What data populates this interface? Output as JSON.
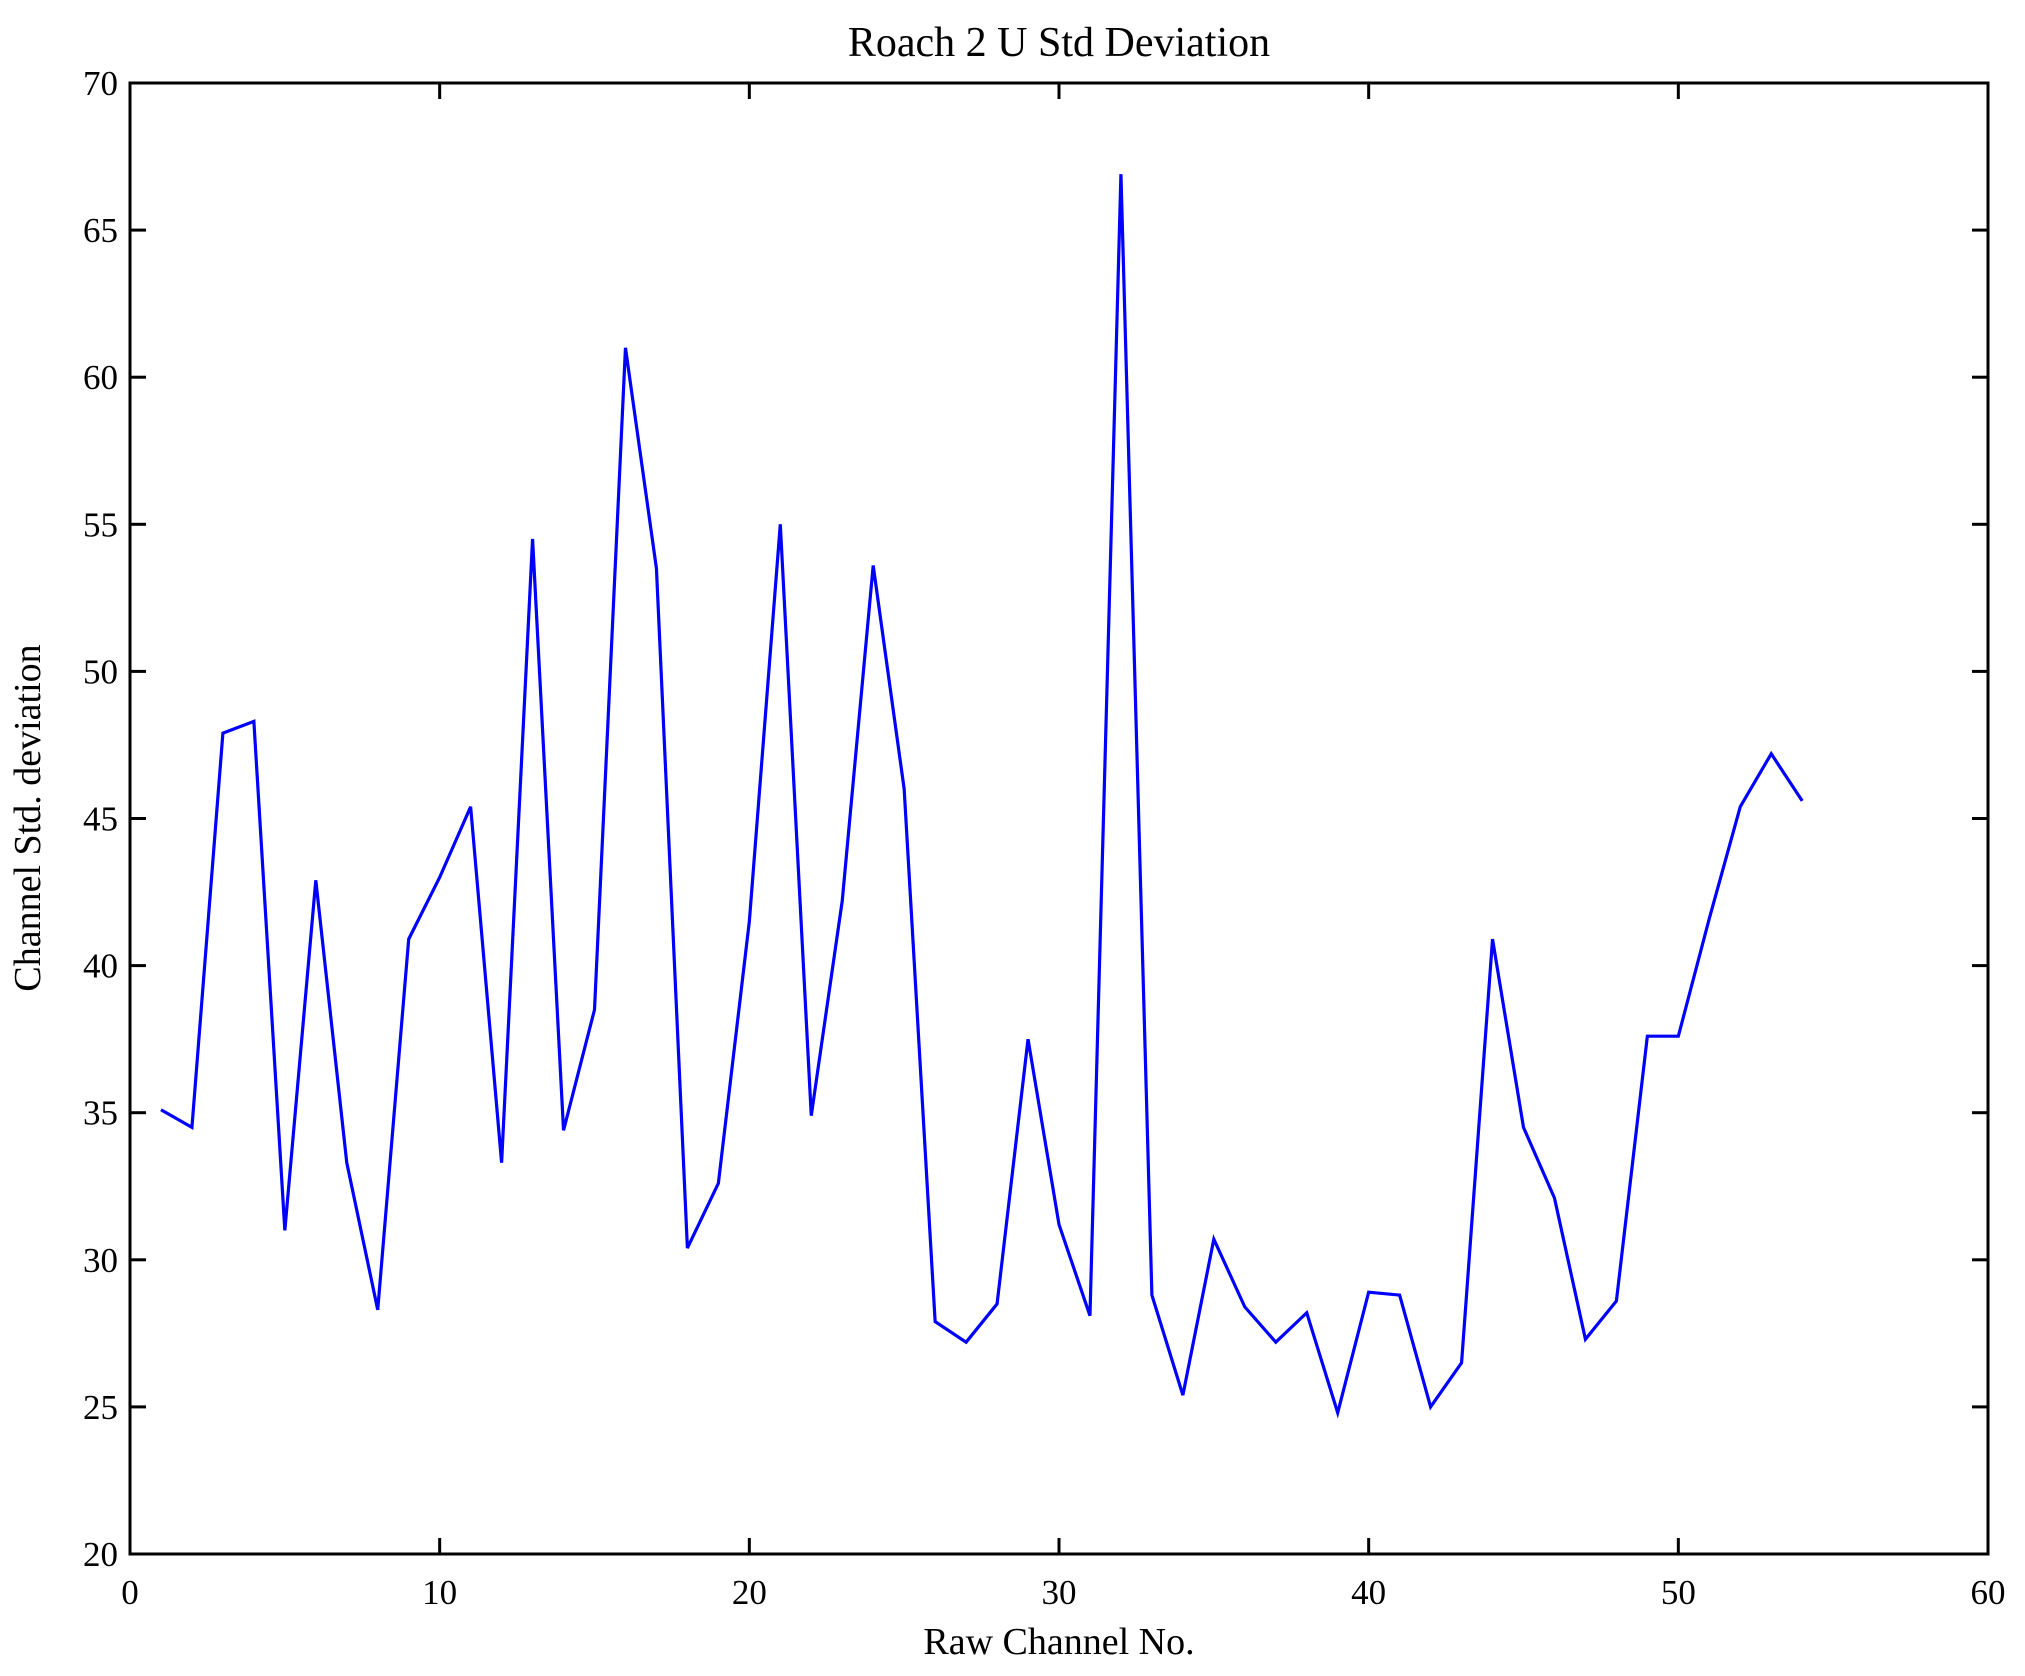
{
  "figure": {
    "background": "#ffffff",
    "axis_color": "#000000"
  },
  "chart_data": {
    "type": "line",
    "title": "Roach 2 U Std Deviation",
    "xlabel": "Raw Channel No.",
    "ylabel": "Channel Std. deviation",
    "xlim": [
      0,
      60
    ],
    "ylim": [
      20,
      70
    ],
    "xticks": [
      0,
      10,
      20,
      30,
      40,
      50,
      60
    ],
    "yticks": [
      20,
      25,
      30,
      35,
      40,
      45,
      50,
      55,
      60,
      65,
      70
    ],
    "grid": false,
    "legend": null,
    "line_color": "#0000FF",
    "x": [
      1,
      2,
      3,
      4,
      5,
      6,
      7,
      8,
      9,
      10,
      11,
      12,
      13,
      14,
      15,
      16,
      17,
      18,
      19,
      20,
      21,
      22,
      23,
      24,
      25,
      26,
      27,
      28,
      29,
      30,
      31,
      32,
      33,
      34,
      35,
      36,
      37,
      38,
      39,
      40,
      41,
      42,
      43,
      44,
      45,
      46,
      47,
      48,
      49,
      50,
      51,
      52,
      53,
      54
    ],
    "values": [
      35.1,
      34.5,
      47.9,
      48.3,
      31.0,
      42.9,
      33.3,
      28.3,
      40.9,
      43.0,
      45.4,
      33.3,
      54.5,
      34.4,
      38.5,
      61.0,
      53.5,
      30.4,
      32.6,
      41.5,
      55.0,
      34.9,
      42.2,
      53.6,
      46.0,
      27.9,
      27.2,
      28.5,
      37.5,
      31.2,
      28.1,
      66.9,
      28.8,
      25.4,
      30.7,
      28.4,
      27.2,
      28.2,
      24.8,
      28.9,
      28.8,
      25.0,
      26.5,
      40.9,
      34.5,
      32.1,
      27.3,
      28.6,
      37.6,
      37.6,
      41.6,
      45.4,
      47.2,
      45.6
    ]
  }
}
